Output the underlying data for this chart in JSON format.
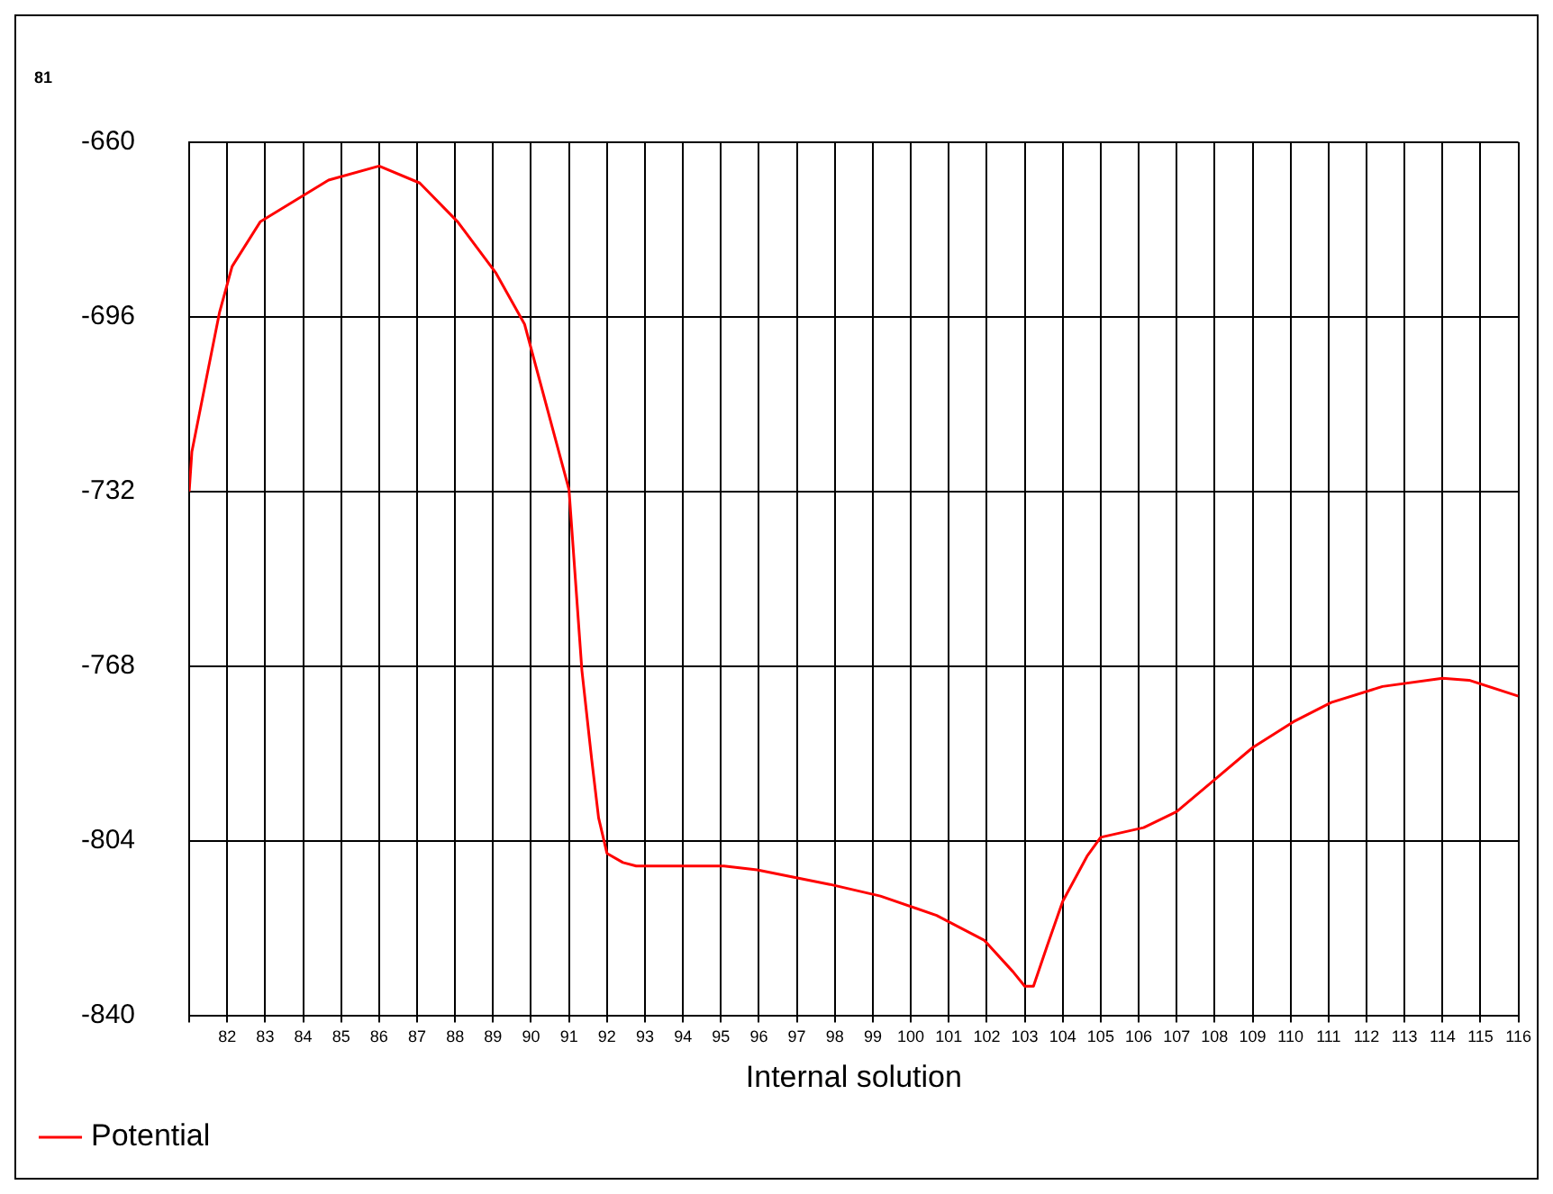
{
  "chart_data": {
    "type": "line",
    "xlabel": "Internal solution",
    "annotations": [
      "81"
    ],
    "xlim": [
      81,
      116
    ],
    "ylim": [
      -840,
      -660
    ],
    "yticks": [
      -840,
      -804,
      -768,
      -732,
      -696,
      -660
    ],
    "xticks": [
      {
        "value": 81,
        "label": null
      },
      82,
      83,
      84,
      85,
      86,
      87,
      88,
      89,
      90,
      91,
      92,
      93,
      94,
      95,
      96,
      97,
      98,
      99,
      100,
      101,
      102,
      103,
      104,
      105,
      106,
      107,
      108,
      109,
      110,
      111,
      112,
      113,
      114,
      115,
      116
    ],
    "grid": true,
    "legend": "bottom left",
    "marker": "none",
    "line_style": "solid",
    "series": [
      {
        "name": "Potential",
        "color": "#ff0000",
        "x": [
          81,
          81.07,
          81.47,
          81.8,
          82.13,
          82.87,
          84.67,
          86,
          87.07,
          88.07,
          89.08,
          89.83,
          91,
          91.34,
          91.6,
          91.78,
          92,
          92.42,
          92.77,
          95.08,
          95.95,
          97.87,
          99.2,
          100.68,
          101.93,
          102.69,
          103,
          103.23,
          103.59,
          104,
          104.64,
          105,
          106.13,
          107,
          108,
          109,
          110.07,
          111.07,
          112.42,
          114,
          114.7,
          116
        ],
        "values": [
          -732,
          -723.8,
          -708,
          -695,
          -685.6,
          -676.4,
          -667.8,
          -664.9,
          -668.4,
          -676.4,
          -687,
          -697.5,
          -731.6,
          -768.9,
          -787.4,
          -799.3,
          -806.6,
          -808.5,
          -809.2,
          -809.2,
          -810,
          -813,
          -815.4,
          -819.4,
          -824.5,
          -831,
          -834,
          -834,
          -825.7,
          -816.5,
          -807.2,
          -803.3,
          -801.3,
          -798,
          -791.4,
          -784.8,
          -779.5,
          -775.5,
          -772.2,
          -770.5,
          -770.9,
          -774.2
        ]
      }
    ]
  }
}
